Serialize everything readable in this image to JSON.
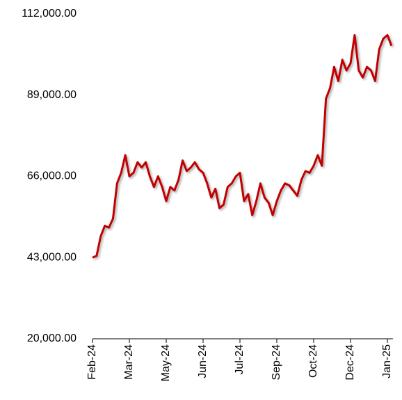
{
  "chart_data": {
    "type": "line",
    "categories": [
      "Feb-24",
      null,
      null,
      null,
      null,
      null,
      null,
      null,
      null,
      "Mar-24",
      null,
      null,
      null,
      null,
      null,
      null,
      null,
      null,
      "May-24",
      null,
      null,
      null,
      null,
      null,
      null,
      null,
      null,
      "Jun-24",
      null,
      null,
      null,
      null,
      null,
      null,
      null,
      null,
      "Jul-24",
      null,
      null,
      null,
      null,
      null,
      null,
      null,
      null,
      "Sep-24",
      null,
      null,
      null,
      null,
      null,
      null,
      null,
      null,
      "Oct-24",
      null,
      null,
      null,
      null,
      null,
      null,
      null,
      null,
      "Dec-24",
      null,
      null,
      null,
      null,
      null,
      null,
      null,
      null,
      "Jan-25",
      null
    ],
    "values": [
      43000,
      43500,
      49000,
      52000,
      51500,
      54000,
      64000,
      67000,
      72000,
      66000,
      67000,
      70000,
      68500,
      70000,
      66000,
      63000,
      66000,
      63000,
      59000,
      63000,
      62000,
      65000,
      70500,
      67500,
      68500,
      70000,
      68000,
      67000,
      64000,
      60000,
      62500,
      57000,
      58000,
      63000,
      64000,
      66000,
      67000,
      59000,
      61000,
      55000,
      59000,
      64000,
      60000,
      58500,
      55000,
      59000,
      62000,
      64000,
      63500,
      62000,
      60500,
      65000,
      67500,
      67000,
      69000,
      72000,
      69000,
      88000,
      91000,
      97000,
      93000,
      99000,
      96000,
      98000,
      106000,
      96000,
      94000,
      97000,
      96000,
      93000,
      102000,
      105000,
      106000,
      103000
    ],
    "color": "#c00000",
    "ylim": [
      20000,
      112000
    ],
    "yticks": [
      {
        "value": 20000,
        "label": "20,000.00"
      },
      {
        "value": 43000,
        "label": "43,000.00"
      },
      {
        "value": 66000,
        "label": "66,000.00"
      },
      {
        "value": 89000,
        "label": "89,000.00"
      },
      {
        "value": 112000,
        "label": "112,000.00"
      }
    ],
    "grid": false
  }
}
